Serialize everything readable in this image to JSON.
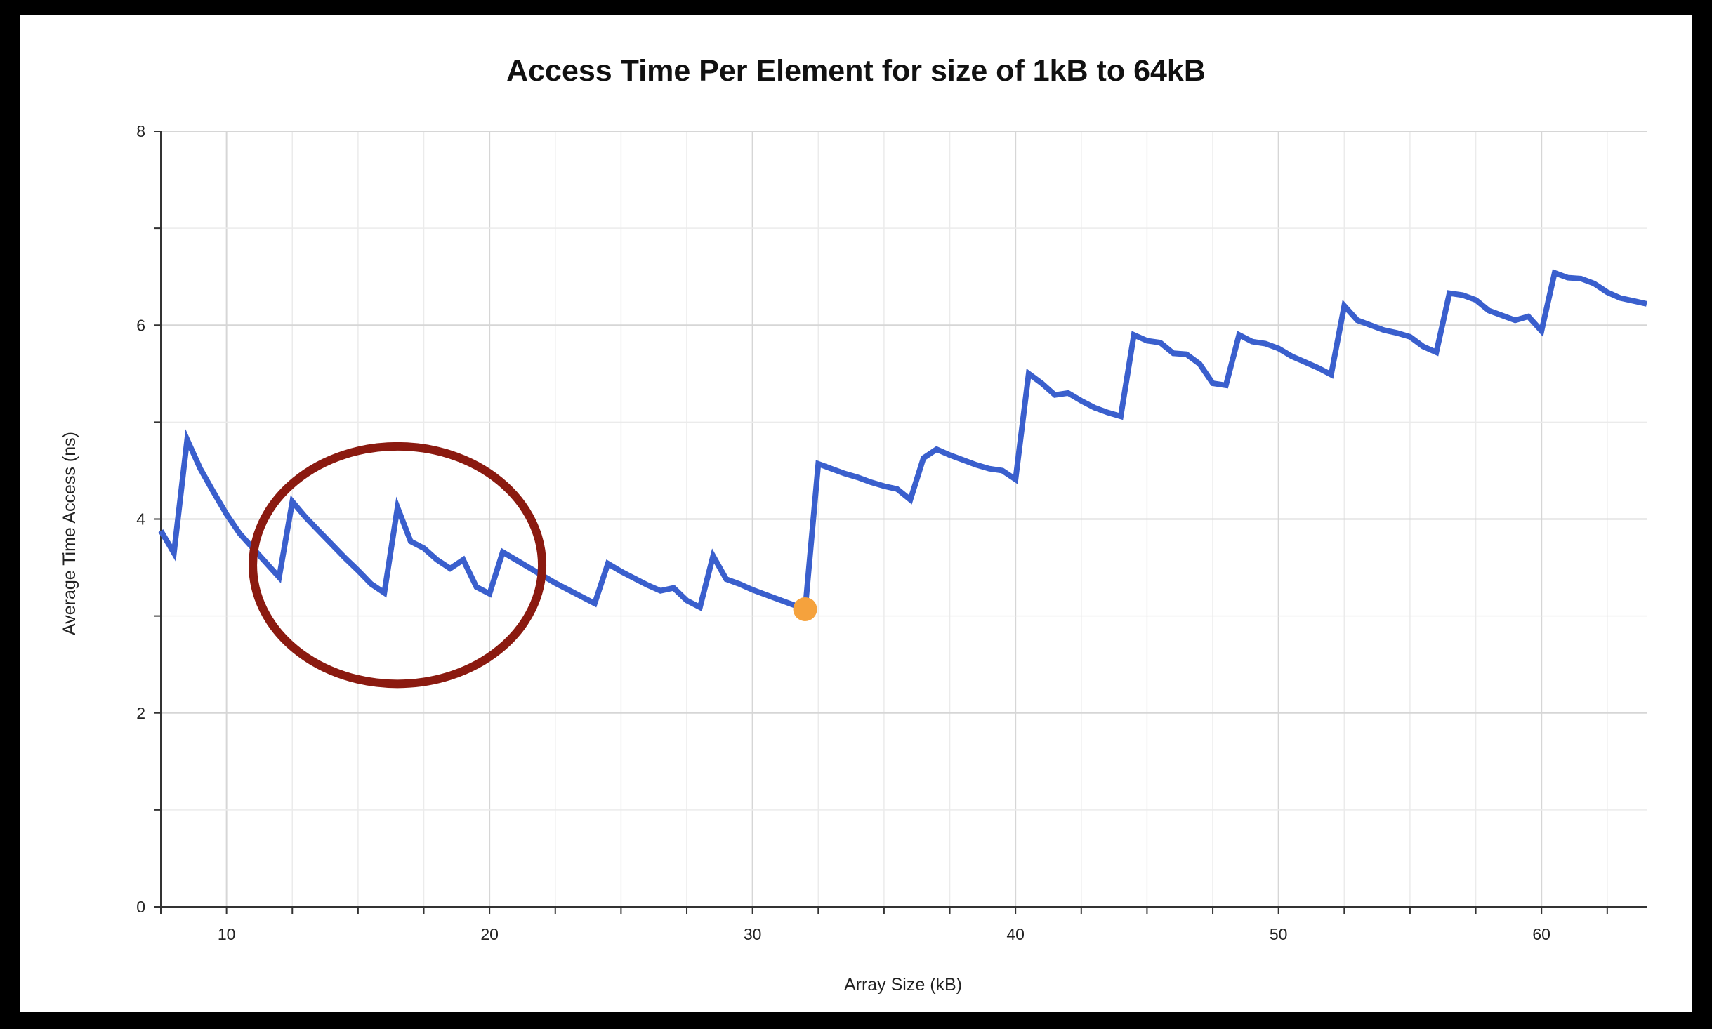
{
  "chart_data": {
    "type": "line",
    "title": "Access Time Per Element for size of 1kB to 64kB",
    "xlabel": "Array Size (kB)",
    "ylabel": "Average Time Access (ns)",
    "xlim": [
      7.5,
      64
    ],
    "ylim": [
      0,
      8
    ],
    "x_ticks": [
      10,
      20,
      30,
      40,
      50,
      60
    ],
    "y_ticks": [
      0,
      2,
      4,
      6,
      8
    ],
    "grid": true,
    "series_color": "#3a5fcd",
    "highlight_color": "#f5a23d",
    "annotation_color": "#8b1a10",
    "series": [
      {
        "x": [
          7.5,
          8,
          8.5,
          9,
          9.5,
          10,
          10.5,
          11,
          11.5,
          12,
          12.5,
          13,
          13.5,
          14,
          14.5,
          15,
          15.5,
          16,
          16.5,
          17,
          17.5,
          18,
          18.5,
          19,
          19.5,
          20,
          20.5,
          21,
          21.5,
          22,
          22.5,
          23,
          23.5,
          24,
          24.5,
          25,
          25.5,
          26,
          26.5,
          27,
          27.5,
          28,
          28.5,
          29,
          29.5,
          30,
          30.5,
          31,
          31.5,
          32,
          32.5,
          33,
          33.5,
          34,
          34.5,
          35,
          35.5,
          36,
          36.5,
          37,
          37.5,
          38,
          38.5,
          39,
          39.5,
          40,
          40.5,
          41,
          41.5,
          42,
          42.5,
          43,
          43.5,
          44,
          44.5,
          45,
          45.5,
          46,
          46.5,
          47,
          47.5,
          48,
          48.5,
          49,
          49.5,
          50,
          50.5,
          51,
          51.5,
          52,
          52.5,
          53,
          53.5,
          54,
          54.5,
          55,
          55.5,
          56,
          56.5,
          57,
          57.5,
          58,
          58.5,
          59,
          59.5,
          60,
          60.5,
          61,
          61.5,
          62,
          62.5,
          63,
          63.5,
          64
        ],
        "values": [
          3.88,
          3.65,
          4.82,
          4.52,
          4.28,
          4.05,
          3.85,
          3.7,
          3.55,
          3.4,
          4.18,
          4.02,
          3.88,
          3.74,
          3.6,
          3.47,
          3.33,
          3.24,
          4.12,
          3.77,
          3.7,
          3.58,
          3.49,
          3.58,
          3.3,
          3.23,
          3.66,
          3.58,
          3.5,
          3.42,
          3.34,
          3.27,
          3.2,
          3.13,
          3.54,
          3.46,
          3.39,
          3.32,
          3.26,
          3.29,
          3.16,
          3.09,
          3.62,
          3.38,
          3.33,
          3.27,
          3.22,
          3.17,
          3.12,
          3.07,
          4.57,
          4.52,
          4.47,
          4.43,
          4.38,
          4.34,
          4.31,
          4.2,
          4.63,
          4.72,
          4.66,
          4.61,
          4.56,
          4.52,
          4.5,
          4.41,
          5.5,
          5.4,
          5.28,
          5.3,
          5.22,
          5.15,
          5.1,
          5.06,
          5.9,
          5.84,
          5.82,
          5.71,
          5.7,
          5.6,
          5.4,
          5.38,
          5.9,
          5.83,
          5.81,
          5.76,
          5.68,
          5.62,
          5.56,
          5.49,
          6.2,
          6.05,
          6.0,
          5.95,
          5.92,
          5.88,
          5.78,
          5.72,
          6.33,
          6.31,
          6.26,
          6.15,
          6.1,
          6.05,
          6.09,
          5.94,
          6.54,
          6.49,
          6.48,
          6.43,
          6.34,
          6.28,
          6.25,
          6.22
        ]
      }
    ],
    "highlight_point": {
      "x": 32,
      "y": 3.07
    },
    "annotation": {
      "shape": "ellipse",
      "x_range": [
        11,
        22
      ],
      "y_range": [
        2.3,
        4.75
      ]
    }
  }
}
